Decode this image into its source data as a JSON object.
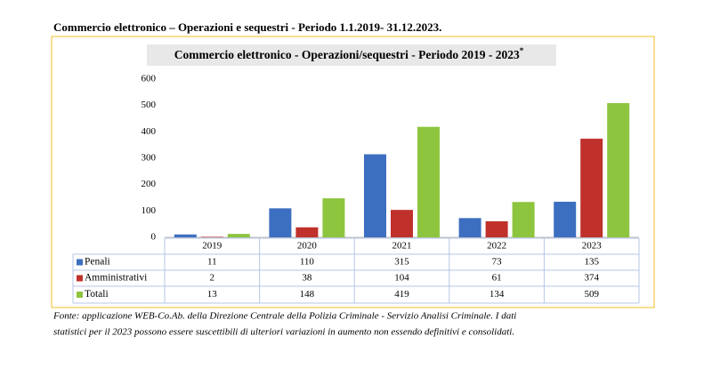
{
  "heading": "Commercio elettronico – Operazioni e sequestri - Periodo 1.1.2019- 31.12.2023.",
  "chart_data": {
    "type": "bar",
    "title": "Commercio elettronico - Operazioni/sequestri - Periodo 2019 - 2023",
    "title_note": "*",
    "categories": [
      "2019",
      "2020",
      "2021",
      "2022",
      "2023"
    ],
    "series": [
      {
        "name": "Penali",
        "color": "#3d6fc0",
        "values": [
          11,
          110,
          315,
          73,
          135
        ]
      },
      {
        "name": "Amministrativi",
        "color": "#c0312c",
        "values": [
          2,
          38,
          104,
          61,
          374
        ]
      },
      {
        "name": "Totali",
        "color": "#8dc53f",
        "values": [
          13,
          148,
          419,
          134,
          509
        ]
      }
    ],
    "ylim": [
      0,
      600
    ],
    "yticks": [
      0,
      100,
      200,
      300,
      400,
      500,
      600
    ],
    "grid": false
  },
  "footer": [
    "Fonte: applicazione WEB-Co.Ab. della Direzione Centrale della Polizia Criminale - Servizio Analisi Criminale. I dati",
    "statistici per il 2023 possono essere suscettibili di ulteriori variazioni in aumento non essendo definitivi e consolidati."
  ]
}
